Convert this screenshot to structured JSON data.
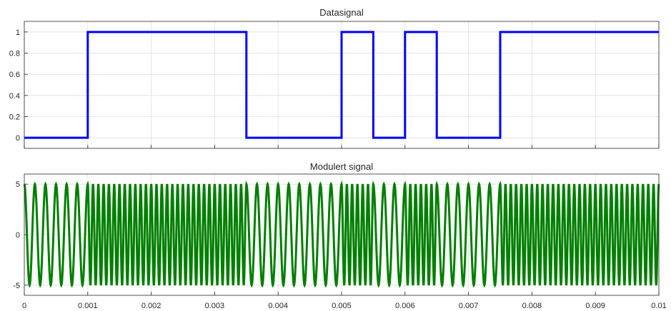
{
  "chart_data": [
    {
      "type": "line",
      "title": "Datasignal",
      "xlabel": "",
      "ylabel": "",
      "xlim": [
        0,
        0.01
      ],
      "ylim": [
        -0.1,
        1.1
      ],
      "grid": true,
      "x_ticks": [
        "0",
        "0.001",
        "0.002",
        "0.003",
        "0.004",
        "0.005",
        "0.006",
        "0.007",
        "0.008",
        "0.009",
        "0.01"
      ],
      "y_ticks": [
        "0",
        "0.2",
        "0.4",
        "0.6",
        "0.8",
        "1"
      ],
      "series": [
        {
          "color": "#0000ff",
          "step": true,
          "x": [
            0,
            0.001,
            0.0035,
            0.005,
            0.0055,
            0.006,
            0.0065,
            0.0075,
            0.01
          ],
          "y": [
            0,
            1,
            0,
            1,
            0,
            1,
            0,
            1,
            1
          ]
        }
      ]
    },
    {
      "type": "line",
      "title": "Modulert signal",
      "xlabel": "",
      "ylabel": "",
      "xlim": [
        0,
        0.01
      ],
      "ylim": [
        -6,
        6
      ],
      "grid": true,
      "x_ticks": [
        "0",
        "0.001",
        "0.002",
        "0.003",
        "0.004",
        "0.005",
        "0.006",
        "0.007",
        "0.008",
        "0.009",
        "0.01"
      ],
      "y_ticks": [
        "-5",
        "0",
        "5"
      ],
      "series": [
        {
          "color": "#007f00",
          "amplitude": 5,
          "modulation": "FSK",
          "frequency_bit0_hz": 6000,
          "frequency_bit1_hz": 12000,
          "bit_segments": [
            {
              "x0": 0,
              "x1": 0.001,
              "bit": 0
            },
            {
              "x0": 0.001,
              "x1": 0.0035,
              "bit": 1
            },
            {
              "x0": 0.0035,
              "x1": 0.005,
              "bit": 0
            },
            {
              "x0": 0.005,
              "x1": 0.0055,
              "bit": 1
            },
            {
              "x0": 0.0055,
              "x1": 0.006,
              "bit": 0
            },
            {
              "x0": 0.006,
              "x1": 0.0065,
              "bit": 1
            },
            {
              "x0": 0.0065,
              "x1": 0.0075,
              "bit": 0
            },
            {
              "x0": 0.0075,
              "x1": 0.01,
              "bit": 1
            }
          ]
        }
      ]
    }
  ]
}
